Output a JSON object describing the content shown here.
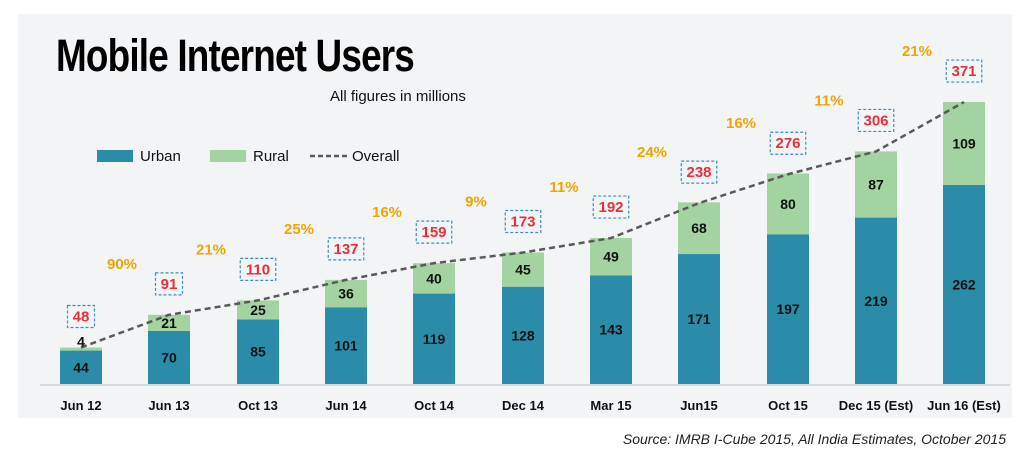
{
  "title": "Mobile Internet Users",
  "subtitle": "All figures in millions",
  "source": "Source: IMRB I-Cube 2015, All India Estimates, October 2015",
  "colors": {
    "urban": "#2a8ca9",
    "rural": "#a2d3a0",
    "overall": "#595959",
    "total_label": "#e8303a",
    "growth_label": "#f0a500",
    "total_box": "#3a8fc0"
  },
  "chart_data": {
    "type": "bar",
    "stacked": true,
    "categories": [
      "Jun 12",
      "Jun 13",
      "Oct 13",
      "Jun 14",
      "Oct 14",
      "Dec 14",
      "Mar 15",
      "Jun15",
      "Oct 15",
      "Dec 15 (Est)",
      "Jun 16 (Est)"
    ],
    "series": [
      {
        "name": "Urban",
        "values": [
          44,
          70,
          85,
          101,
          119,
          128,
          143,
          171,
          197,
          219,
          262
        ]
      },
      {
        "name": "Rural",
        "values": [
          4,
          21,
          25,
          36,
          40,
          45,
          49,
          68,
          80,
          87,
          109
        ]
      }
    ],
    "overall": {
      "name": "Overall",
      "values": [
        48,
        91,
        110,
        137,
        159,
        173,
        192,
        238,
        276,
        306,
        371
      ]
    },
    "growth_labels": [
      "",
      "90%",
      "21%",
      "25%",
      "16%",
      "9%",
      "11%",
      "24%",
      "16%",
      "11%",
      "21%"
    ],
    "legend": {
      "position": "top-left",
      "entries": [
        "Urban",
        "Rural",
        "Overall"
      ]
    },
    "ylim": [
      0,
      380
    ],
    "xlabel": "",
    "ylabel": "",
    "grid": false
  }
}
